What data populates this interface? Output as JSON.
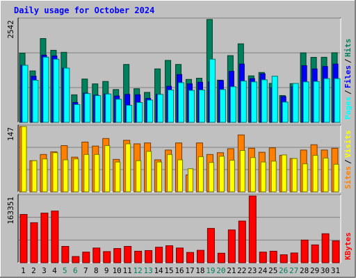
{
  "chart_data": {
    "type": "bar",
    "title": "Daily usage for October 2024",
    "categories": [
      "1",
      "2",
      "3",
      "4",
      "5",
      "6",
      "7",
      "8",
      "9",
      "10",
      "11",
      "12",
      "13",
      "14",
      "15",
      "16",
      "17",
      "18",
      "19",
      "20",
      "21",
      "22",
      "23",
      "24",
      "25",
      "26",
      "27",
      "28",
      "29",
      "30",
      "31"
    ],
    "weekend_days": [
      "5",
      "6",
      "12",
      "13",
      "19",
      "20",
      "26",
      "27"
    ],
    "colors": {
      "title": "#0000ff",
      "background": "#c0c0c0",
      "weekday_label": "#000000",
      "weekend_label": "#00805c",
      "hits": "#00805c",
      "files": "#0000ff",
      "pages": "#00ffff",
      "visits": "#ffff00",
      "sites": "#ff8000",
      "kbytes": "#ff0000"
    },
    "panels": [
      {
        "id": "top",
        "ymax_label": "2542",
        "ylim": [
          0,
          2542
        ],
        "series": [
          {
            "name": "Hits",
            "color": "#00805c",
            "values": [
              1710,
              1270,
              2070,
              1780,
              1730,
              680,
              1070,
              950,
              1010,
              810,
              1430,
              830,
              740,
              1320,
              1530,
              1430,
              1060,
              1090,
              2542,
              1042,
              1648,
              1940,
              1148,
              1232,
              962,
              662,
              956,
              1718,
              1606,
              1608,
              1720
            ]
          },
          {
            "name": "Files",
            "color": "#0000ff",
            "values": [
              1410,
              1140,
              1660,
              1640,
              1340,
              490,
              720,
              670,
              700,
              650,
              690,
              680,
              590,
              690,
              890,
              1180,
              950,
              990,
              1000,
              1032,
              1260,
              1440,
              1080,
              1200,
              860,
              637,
              880,
              1400,
              1320,
              1380,
              1440
            ]
          },
          {
            "name": "Pages",
            "color": "#00ffff",
            "values": [
              1410,
              1040,
              1610,
              1560,
              1340,
              440,
              710,
              660,
              700,
              570,
              420,
              490,
              550,
              690,
              800,
              980,
              790,
              800,
              1560,
              810,
              880,
              1020,
              1000,
              1050,
              1140,
              500,
              960,
              1000,
              1010,
              1080,
              1080
            ]
          }
        ],
        "legend": [
          "Pages",
          "Files",
          "Hits"
        ]
      },
      {
        "id": "middle",
        "ymax_label": "147",
        "ylim": [
          0,
          147
        ],
        "series": [
          {
            "name": "Sites",
            "color": "#ff8000",
            "values": [
              147,
              70,
              84,
              90,
              104,
              78,
              112,
              103,
              120,
              73,
              116,
              108,
              110,
              72,
              94,
              110,
              38,
              110,
              84,
              88,
              97,
              128,
              98,
              89,
              99,
              82,
              75,
              94,
              106,
              94,
              98
            ]
          },
          {
            "name": "Visits",
            "color": "#ffff00",
            "values": [
              147,
              70,
              74,
              88,
              72,
              74,
              84,
              84,
              104,
              67,
              108,
              70,
              91,
              67,
              84,
              72,
              52,
              79,
              66,
              80,
              71,
              93,
              77,
              67,
              69,
              83,
              75,
              63,
              82,
              76,
              62
            ]
          }
        ],
        "legend": [
          "Sites",
          "Visits"
        ]
      },
      {
        "id": "bottom",
        "ymax_label": "163351",
        "ylim": [
          0,
          163351
        ],
        "series": [
          {
            "name": "KBytes",
            "color": "#ff0000",
            "values": [
              118200,
              98000,
              121500,
              126500,
              40000,
              15200,
              26000,
              36000,
              27300,
              34800,
              40000,
              28200,
              29800,
              38000,
              41600,
              36000,
              25200,
              30400,
              84000,
              23300,
              80300,
              102000,
              163351,
              26000,
              28200,
              19500,
              23900,
              55500,
              43700,
              71000,
              53400
            ]
          }
        ],
        "legend": [
          "KBytes"
        ]
      }
    ]
  }
}
